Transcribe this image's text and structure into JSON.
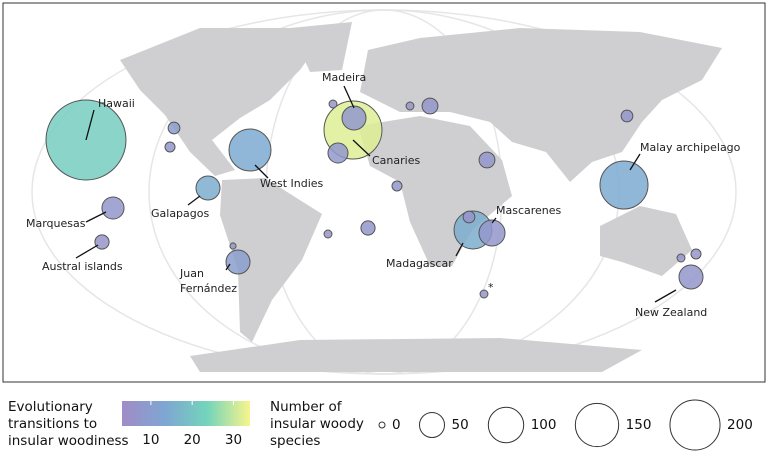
{
  "map": {
    "islands": [
      {
        "label": "Hawaii",
        "transitions": 22,
        "species": 510
      },
      {
        "label": "Canaries",
        "transitions": 32,
        "species": 268
      },
      {
        "label": "Madeira",
        "transitions": 8,
        "species": 46
      },
      {
        "label": "West Indies",
        "transitions": 14,
        "species": 141
      },
      {
        "label": "Galapagos",
        "transitions": 15,
        "species": 46
      },
      {
        "label": "Marquesas",
        "transitions": 7,
        "species": 39
      },
      {
        "label": "Austral islands",
        "transitions": 6,
        "species": 16
      },
      {
        "label": "Juan\nFernández",
        "transitions": 10,
        "species": 46
      },
      {
        "label": "Madagascar",
        "transitions": 15,
        "species": 115
      },
      {
        "label": "Mascarenes",
        "transitions": 7,
        "species": 54
      },
      {
        "label": "Malay archipelago",
        "transitions": 14,
        "species": 184
      },
      {
        "label": "New Zealand",
        "transitions": 7,
        "species": 46
      },
      {
        "label": null,
        "transitions": 9,
        "species": 11
      },
      {
        "label": null,
        "transitions": 7,
        "species": 8
      },
      {
        "label": null,
        "transitions": 6,
        "species": 3
      },
      {
        "label": null,
        "transitions": 8,
        "species": 32
      },
      {
        "label": null,
        "transitions": 7,
        "species": 8
      },
      {
        "label": null,
        "transitions": 7,
        "species": 16
      },
      {
        "label": null,
        "transitions": 6,
        "species": 5
      },
      {
        "label": null,
        "transitions": 7,
        "species": 20
      },
      {
        "label": null,
        "transitions": 6,
        "species": 5
      },
      {
        "label": null,
        "transitions": 7,
        "species": 20
      },
      {
        "label": null,
        "transitions": 7,
        "species": 11
      },
      {
        "label": null,
        "transitions": 6,
        "species": 11
      },
      {
        "label": "*",
        "transitions": 6,
        "species": 5
      },
      {
        "label": null,
        "transitions": 6,
        "species": 5
      },
      {
        "label": null,
        "transitions": 6,
        "species": 8
      },
      {
        "label": null,
        "transitions": 6,
        "species": 5
      }
    ],
    "color_legend": {
      "title": "Evolutionary transitions to insular woodiness",
      "range": [
        3,
        34
      ],
      "ticks": [
        10,
        20,
        30
      ],
      "colors": [
        "#a08cc6",
        "#7ea6d2",
        "#74d4bb",
        "#f8f58c"
      ]
    },
    "size_legend": {
      "title": "Number of insular woody species",
      "values": [
        0,
        50,
        100,
        150,
        200
      ]
    }
  }
}
